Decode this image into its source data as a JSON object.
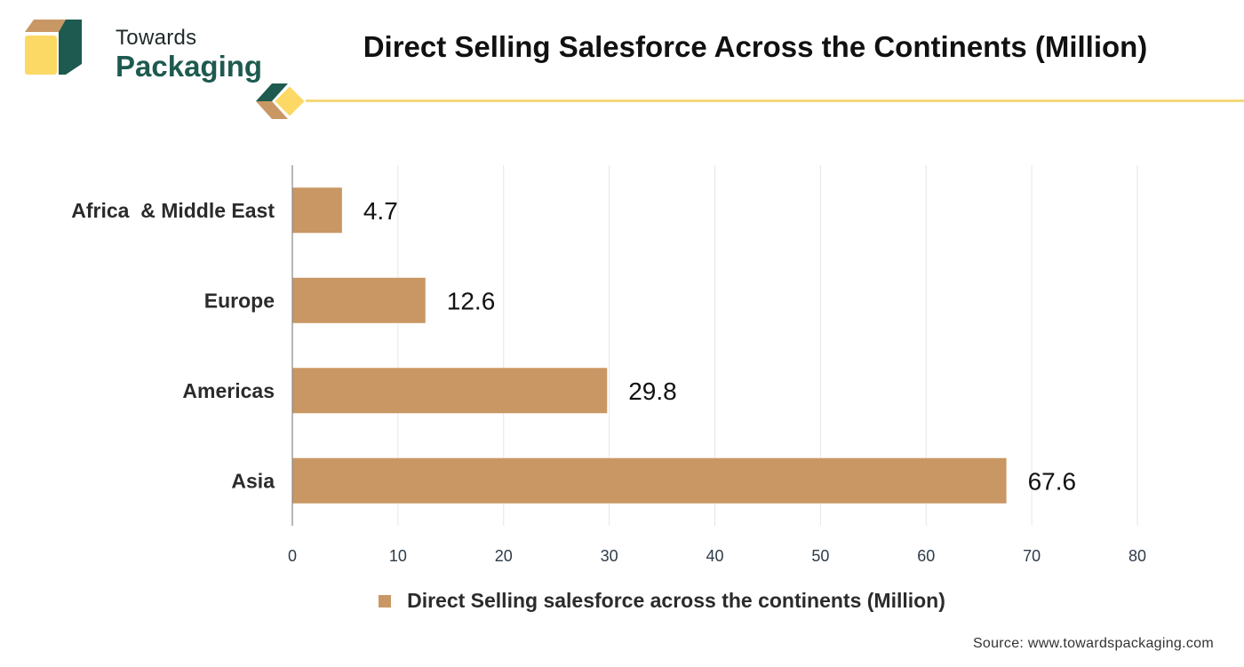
{
  "brand": {
    "line1": "Towards",
    "line2": "Packaging"
  },
  "chart_data": {
    "type": "bar",
    "orientation": "horizontal",
    "title": "Direct Selling Salesforce Across the Continents (Million)",
    "categories": [
      "Africa  & Middle East",
      "Europe",
      "Americas",
      "Asia"
    ],
    "series": [
      {
        "name": "Direct Selling salesforce across the continents (Million)",
        "values": [
          4.7,
          12.6,
          29.8,
          67.6
        ]
      }
    ],
    "data_labels": [
      "4.7",
      "12.6",
      "29.8",
      "67.6"
    ],
    "xlim": [
      0,
      80
    ],
    "xticks": [
      0,
      10,
      20,
      30,
      40,
      50,
      60,
      70,
      80
    ],
    "grid": "vertical",
    "legend": "bottom",
    "bar_color": "#c99764"
  },
  "source": "Source: www.towardspackaging.com"
}
